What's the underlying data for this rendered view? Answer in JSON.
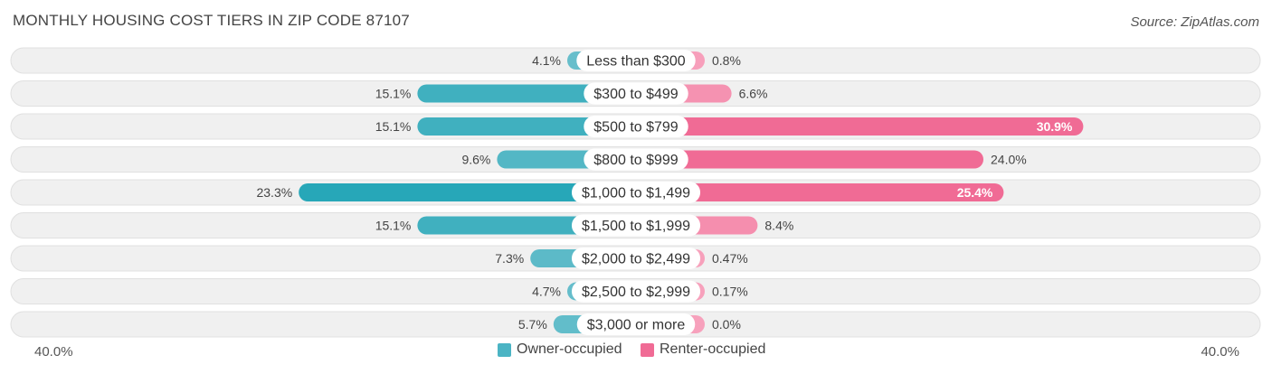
{
  "title": "MONTHLY HOUSING COST TIERS IN ZIP CODE 87107",
  "source": "Source: ZipAtlas.com",
  "colors": {
    "owner": "#4bb4c4",
    "owner_dark": "#26a7b8",
    "renter": "#f7a1bc",
    "renter_dark": "#f06b95",
    "row_bg": "#f0f0f0",
    "row_border": "#e0e0e0"
  },
  "legend": {
    "owner_label": "Owner-occupied",
    "renter_label": "Renter-occupied",
    "left_axis": "40.0%",
    "right_axis": "40.0%"
  },
  "chart_data": {
    "type": "bar",
    "orientation": "horizontal-diverging",
    "categories": [
      "Less than $300",
      "$300 to $499",
      "$500 to $799",
      "$800 to $999",
      "$1,000 to $1,499",
      "$1,500 to $1,999",
      "$2,000 to $2,499",
      "$2,500 to $2,999",
      "$3,000 or more"
    ],
    "series": [
      {
        "name": "Owner-occupied",
        "values": [
          4.1,
          15.1,
          15.1,
          9.6,
          23.3,
          15.1,
          7.3,
          4.7,
          5.7
        ],
        "labels": [
          "4.1%",
          "15.1%",
          "15.1%",
          "9.6%",
          "23.3%",
          "15.1%",
          "7.3%",
          "4.7%",
          "5.7%"
        ]
      },
      {
        "name": "Renter-occupied",
        "values": [
          0.8,
          6.6,
          30.9,
          24.0,
          25.4,
          8.4,
          0.47,
          0.17,
          0.0
        ],
        "labels": [
          "0.8%",
          "6.6%",
          "30.9%",
          "24.0%",
          "25.4%",
          "8.4%",
          "0.47%",
          "0.17%",
          "0.0%"
        ]
      }
    ],
    "xlim": [
      -40,
      40
    ],
    "legend_position": "bottom-center"
  }
}
